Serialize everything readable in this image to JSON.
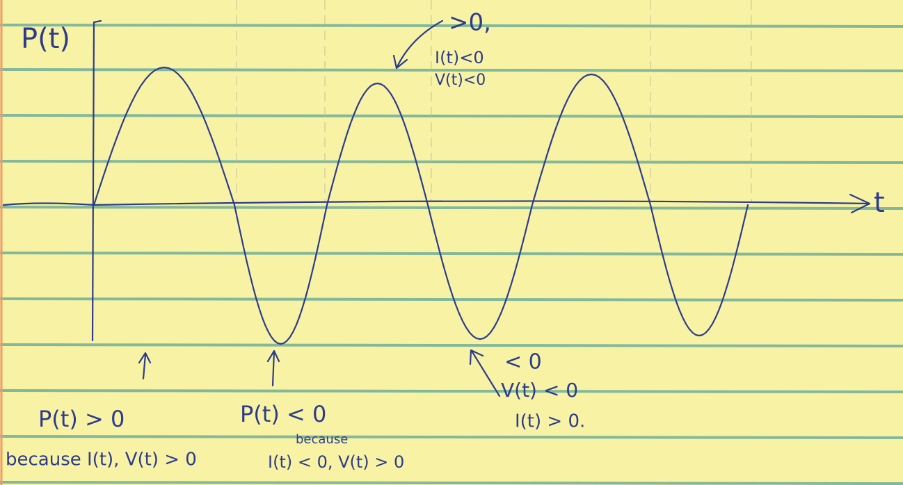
{
  "axes": {
    "y_label": "P(t)",
    "x_label": "t"
  },
  "annotations": [
    {
      "lines": [
        ">0,",
        "I(t)<0",
        "V(t)<0"
      ]
    },
    {
      "lines": [
        "P(t) > 0",
        "because I(t), V(t) > 0"
      ]
    },
    {
      "lines": [
        "P(t) < 0",
        "because",
        "I(t) < 0, V(t) > 0"
      ]
    },
    {
      "lines": [
        "< 0",
        "V(t) < 0",
        "I(t) > 0."
      ]
    }
  ]
}
